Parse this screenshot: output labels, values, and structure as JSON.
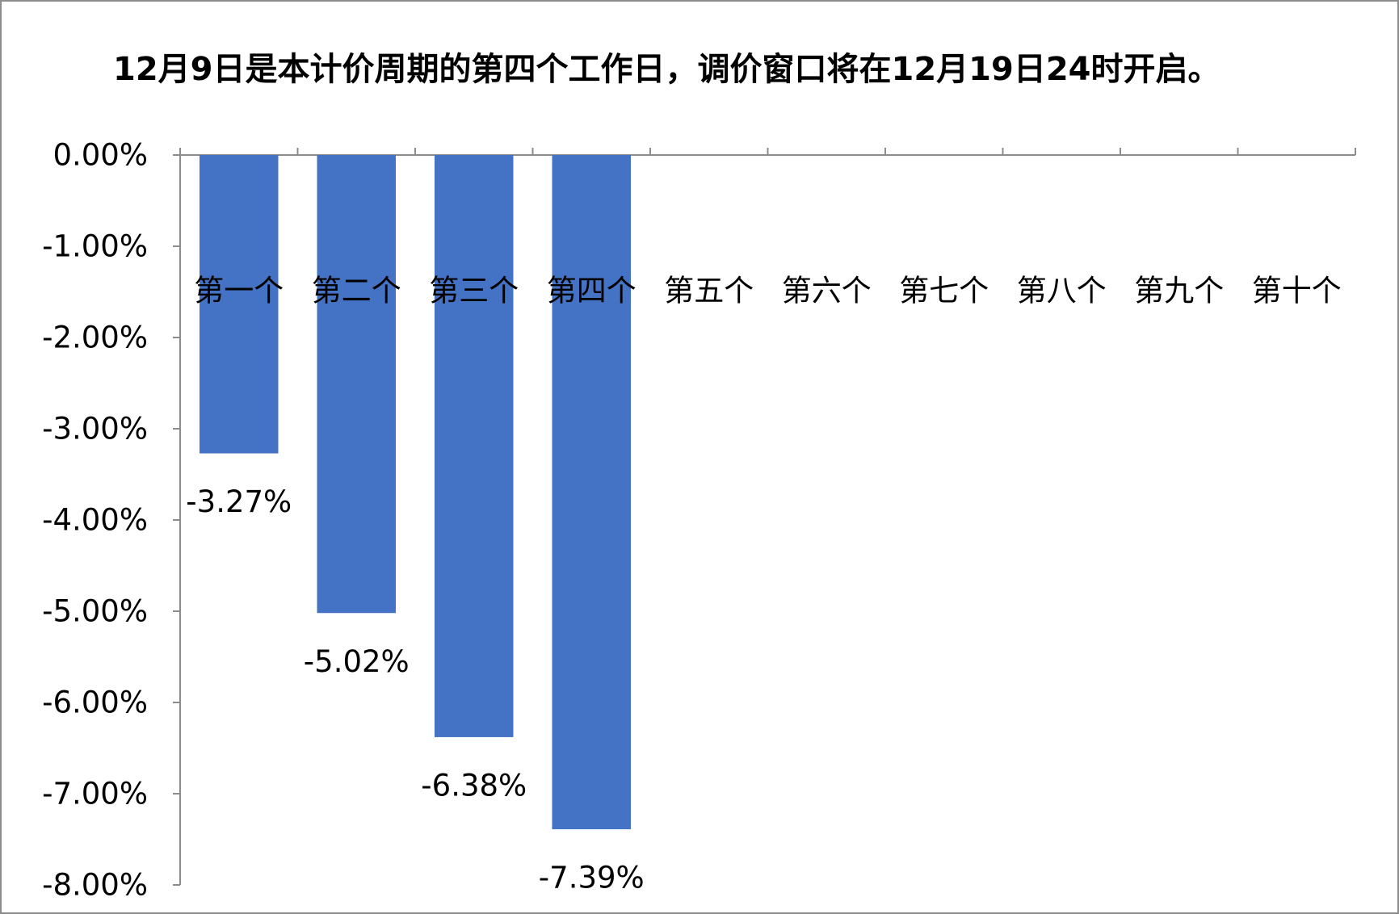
{
  "chart_data": {
    "type": "bar",
    "title": "12月9日是本计价周期的第四个工作日，调价窗口将在12月19日24时开启。",
    "categories": [
      "第一个",
      "第二个",
      "第三个",
      "第四个",
      "第五个",
      "第六个",
      "第七个",
      "第八个",
      "第九个",
      "第十个"
    ],
    "values": [
      -3.27,
      -5.02,
      -6.38,
      -7.39,
      null,
      null,
      null,
      null,
      null,
      null
    ],
    "value_labels": [
      "-3.27%",
      "-5.02%",
      "-6.38%",
      "-7.39%",
      null,
      null,
      null,
      null,
      null,
      null
    ],
    "color": "#4472c4",
    "ylim": [
      -8,
      0
    ],
    "yticks": [
      {
        "value": 0,
        "label": "0.00%"
      },
      {
        "value": -1,
        "label": "-1.00%"
      },
      {
        "value": -2,
        "label": "-2.00%"
      },
      {
        "value": -3,
        "label": "-3.00%"
      },
      {
        "value": -4,
        "label": "-4.00%"
      },
      {
        "value": -5,
        "label": "-5.00%"
      },
      {
        "value": -6,
        "label": "-6.00%"
      },
      {
        "value": -7,
        "label": "-7.00%"
      },
      {
        "value": -8,
        "label": "-8.00%"
      }
    ],
    "grid": false
  }
}
